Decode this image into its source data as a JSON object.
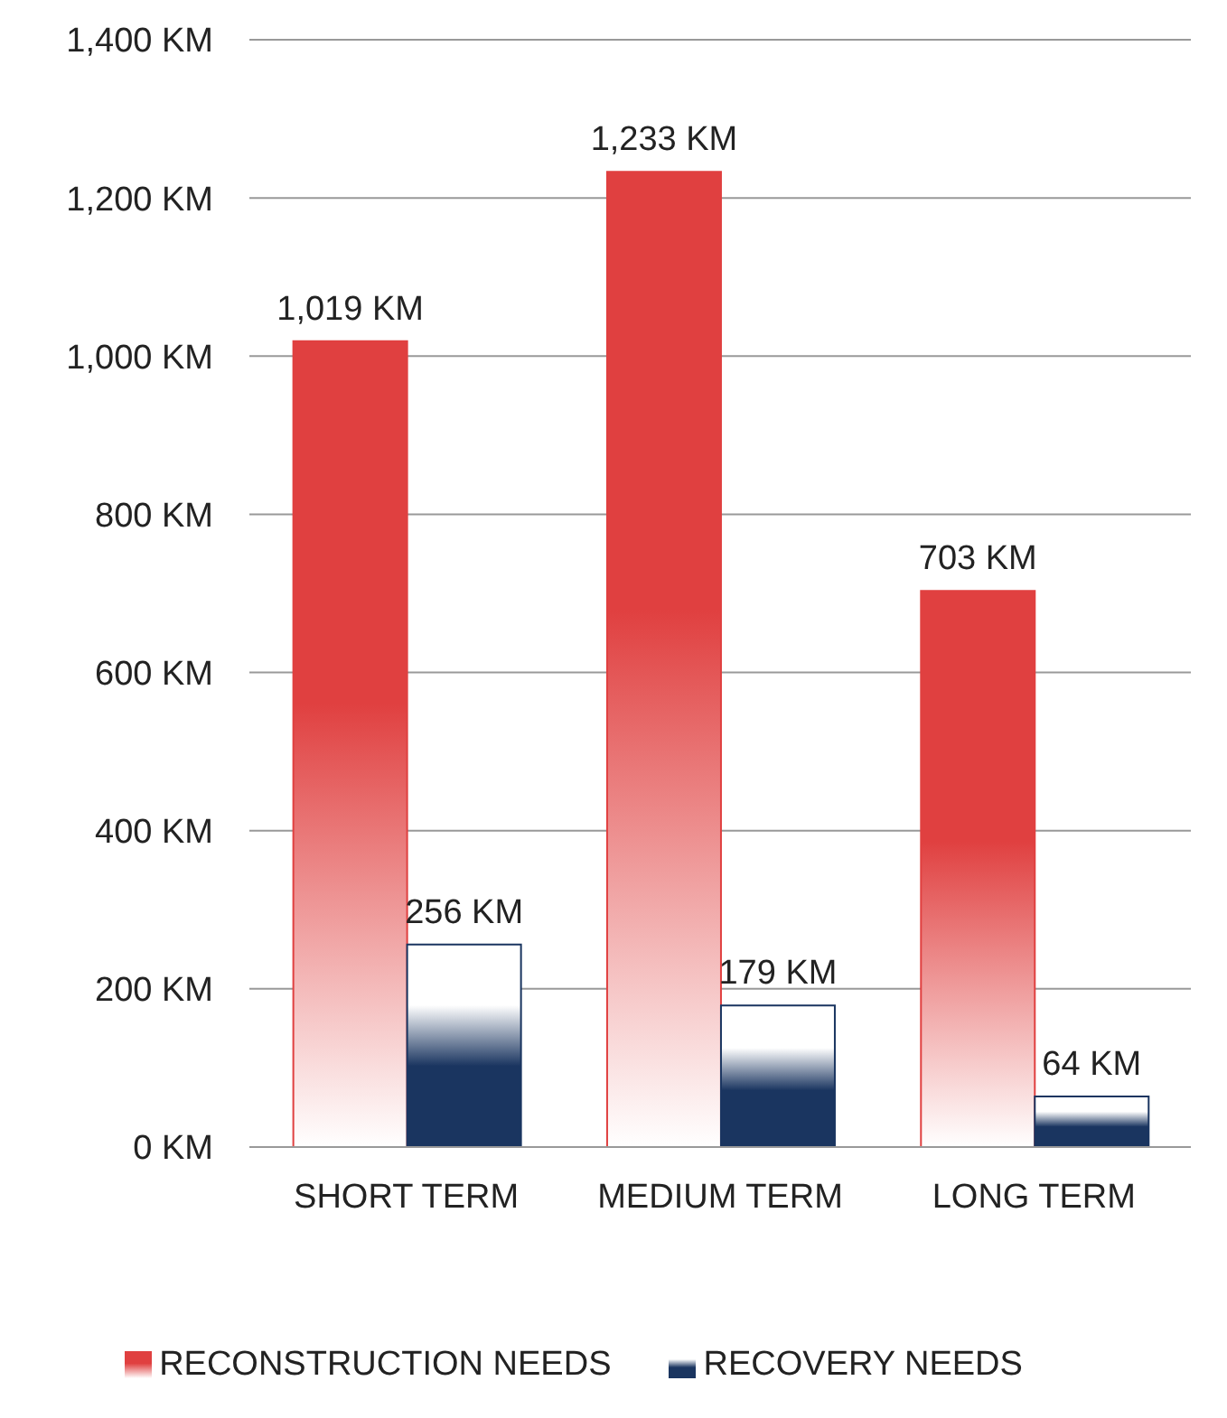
{
  "chart_data": {
    "type": "bar",
    "categories": [
      "SHORT TERM",
      "MEDIUM TERM",
      "LONG TERM"
    ],
    "series": [
      {
        "name": "RECONSTRUCTION NEEDS",
        "color": "#e04040",
        "values": [
          1019,
          1233,
          703
        ],
        "value_labels": [
          "1,019 KM",
          "1,233 KM",
          "703 KM"
        ]
      },
      {
        "name": "RECOVERY NEEDS",
        "color": "#1a3560",
        "values": [
          256,
          179,
          64
        ],
        "value_labels": [
          "256 KM",
          "179 KM",
          "64 KM"
        ]
      }
    ],
    "ylim": [
      0,
      1400
    ],
    "yticks": [
      {
        "value": 0,
        "label": "0 KM"
      },
      {
        "value": 200,
        "label": "200 KM"
      },
      {
        "value": 400,
        "label": "400 KM"
      },
      {
        "value": 600,
        "label": "600 KM"
      },
      {
        "value": 800,
        "label": "800 KM"
      },
      {
        "value": 1000,
        "label": "1,000 KM"
      },
      {
        "value": 1200,
        "label": "1,200 KM"
      },
      {
        "value": 1400,
        "label": "1,400 KM"
      }
    ],
    "grid": "y",
    "legend": "bottom"
  }
}
